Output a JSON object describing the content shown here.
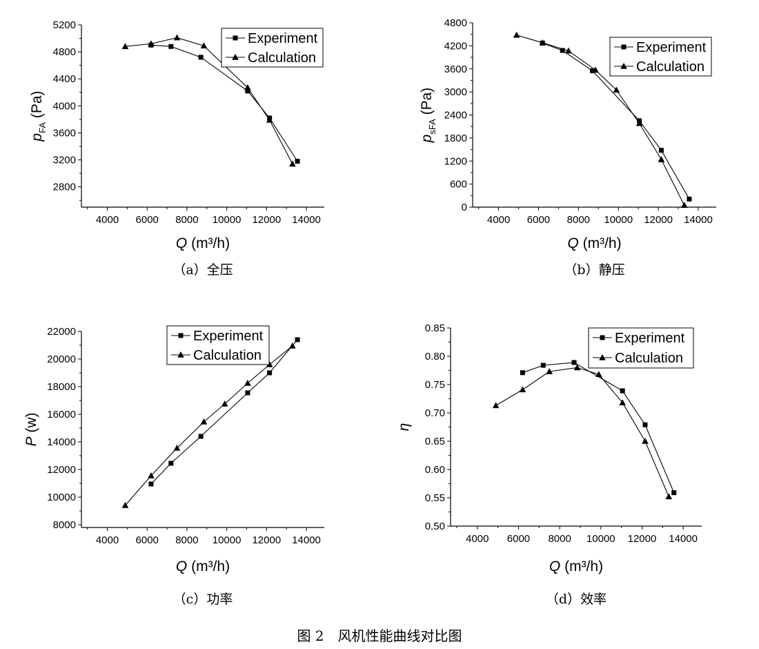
{
  "figure_caption": "图 2　风机性能曲线对比图",
  "legend_labels": [
    "Experiment",
    "Calculation"
  ],
  "chart_data": [
    {
      "type": "line",
      "caption": "（a）全压",
      "ylabel_main": "p",
      "ylabel_sub": "FA",
      "ylabel_unit": " (Pa)",
      "xlabel_main": "Q",
      "xlabel_unit": " (m³/h)",
      "xlim": [
        2700,
        14900
      ],
      "ylim": [
        2500,
        5200
      ],
      "xticks": [
        4000,
        6000,
        8000,
        10000,
        12000,
        14000
      ],
      "yticks": [
        2800,
        3200,
        3600,
        4000,
        4400,
        4800,
        5200
      ],
      "legend_position": "top-right",
      "series": [
        {
          "name": "Experiment",
          "marker": "square",
          "x": [
            6200,
            7200,
            8700,
            11050,
            12150,
            13550
          ],
          "y": [
            4900,
            4880,
            4720,
            4220,
            3820,
            3180
          ]
        },
        {
          "name": "Calculation",
          "marker": "triangle",
          "x": [
            4900,
            6200,
            7500,
            8850,
            11050,
            12150,
            13300
          ],
          "y": [
            4880,
            4920,
            5010,
            4890,
            4270,
            3790,
            3140
          ]
        }
      ]
    },
    {
      "type": "line",
      "caption": "（b）静压",
      "ylabel_main": "p",
      "ylabel_sub": "sFA",
      "ylabel_unit": " (Pa)",
      "xlabel_main": "Q",
      "xlabel_unit": " (m³/h)",
      "xlim": [
        2700,
        14900
      ],
      "ylim": [
        0,
        4800
      ],
      "xticks": [
        4000,
        6000,
        8000,
        10000,
        12000,
        14000
      ],
      "yticks": [
        0,
        600,
        1200,
        1800,
        2400,
        3000,
        3600,
        4200,
        4800
      ],
      "legend_position": "top-right",
      "series": [
        {
          "name": "Experiment",
          "marker": "square",
          "x": [
            6200,
            7200,
            8700,
            11050,
            12150,
            13550
          ],
          "y": [
            4270,
            4080,
            3550,
            2250,
            1480,
            210
          ]
        },
        {
          "name": "Calculation",
          "marker": "triangle",
          "x": [
            4900,
            6200,
            7500,
            8850,
            9900,
            11050,
            12150,
            13300
          ],
          "y": [
            4480,
            4280,
            4070,
            3570,
            3050,
            2180,
            1240,
            50
          ]
        }
      ]
    },
    {
      "type": "line",
      "caption": "（c）功率",
      "ylabel_main": "P",
      "ylabel_sub": "",
      "ylabel_unit": " (w)",
      "xlabel_main": "Q",
      "xlabel_unit": " (m³/h)",
      "xlim": [
        2700,
        14900
      ],
      "ylim": [
        7800,
        22000
      ],
      "xticks": [
        4000,
        6000,
        8000,
        10000,
        12000,
        14000
      ],
      "yticks": [
        8000,
        10000,
        12000,
        14000,
        16000,
        18000,
        20000,
        22000
      ],
      "legend_position": "top-right",
      "series": [
        {
          "name": "Experiment",
          "marker": "square",
          "x": [
            6200,
            7200,
            8700,
            11050,
            12150,
            13550
          ],
          "y": [
            10950,
            12450,
            14400,
            17550,
            19000,
            21400
          ]
        },
        {
          "name": "Calculation",
          "marker": "triangle",
          "x": [
            4900,
            6200,
            7500,
            8850,
            9900,
            11050,
            12150,
            13300
          ],
          "y": [
            9400,
            11550,
            13550,
            15450,
            16750,
            18250,
            19600,
            20950
          ]
        }
      ]
    },
    {
      "type": "line",
      "caption": "（d）效率",
      "ylabel_main": "η",
      "ylabel_sub": "",
      "ylabel_unit": "",
      "xlabel_main": "Q",
      "xlabel_unit": " (m³/h)",
      "xlim": [
        2700,
        14900
      ],
      "ylim": [
        0.5,
        0.85
      ],
      "xticks": [
        4000,
        6000,
        8000,
        10000,
        12000,
        14000
      ],
      "yticks": [
        0.5,
        0.55,
        0.6,
        0.65,
        0.7,
        0.75,
        0.8,
        0.85
      ],
      "ytick_labels": [
        "0.50",
        "0.55",
        "0.60",
        "0.65",
        "0.70",
        "0.75",
        "0.80",
        "0.85"
      ],
      "legend_position": "top-right",
      "series": [
        {
          "name": "Experiment",
          "marker": "square",
          "x": [
            6200,
            7200,
            8700,
            11050,
            12150,
            13550
          ],
          "y": [
            0.771,
            0.784,
            0.789,
            0.739,
            0.679,
            0.559
          ]
        },
        {
          "name": "Calculation",
          "marker": "triangle",
          "x": [
            4900,
            6200,
            7500,
            8850,
            9900,
            11050,
            12150,
            13300
          ],
          "y": [
            0.713,
            0.741,
            0.773,
            0.78,
            0.768,
            0.718,
            0.65,
            0.552
          ]
        }
      ]
    }
  ]
}
